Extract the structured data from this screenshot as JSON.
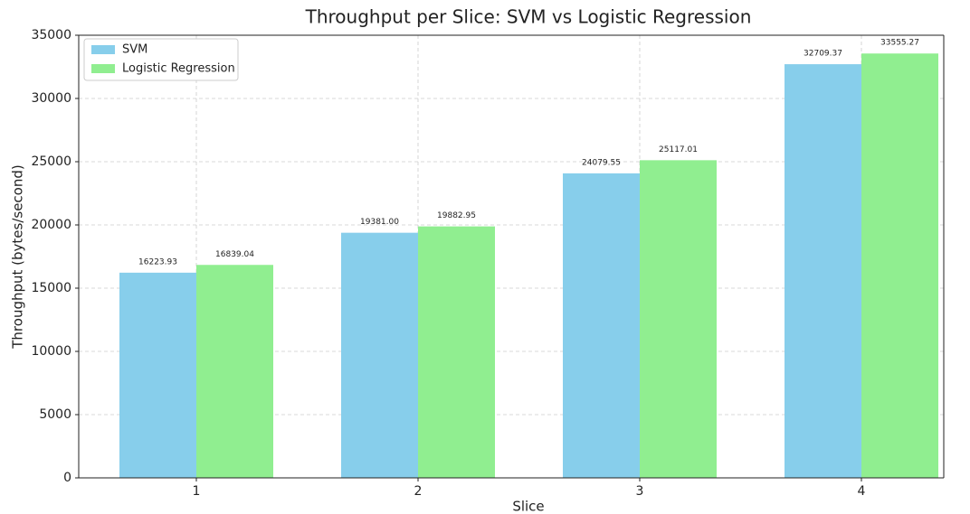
{
  "chart_data": {
    "type": "bar",
    "title": "Throughput per Slice: SVM vs Logistic Regression",
    "xlabel": "Slice",
    "ylabel": "Throughput (bytes/second)",
    "categories": [
      "1",
      "2",
      "3",
      "4"
    ],
    "series": [
      {
        "name": "SVM",
        "color": "#87ceeb",
        "values": [
          16223.93,
          19381.0,
          24079.55,
          32709.37
        ],
        "value_labels": [
          "16223.93",
          "19381.00",
          "24079.55",
          "32709.37"
        ]
      },
      {
        "name": "Logistic Regression",
        "color": "#90ee90",
        "values": [
          16839.04,
          19882.95,
          25117.01,
          33555.27
        ],
        "value_labels": [
          "16839.04",
          "19882.95",
          "25117.01",
          "33555.27"
        ]
      }
    ],
    "ylim": [
      0,
      35000
    ],
    "yticks": [
      0,
      5000,
      10000,
      15000,
      20000,
      25000,
      30000,
      35000
    ],
    "grid": true,
    "legend": "upper left"
  }
}
